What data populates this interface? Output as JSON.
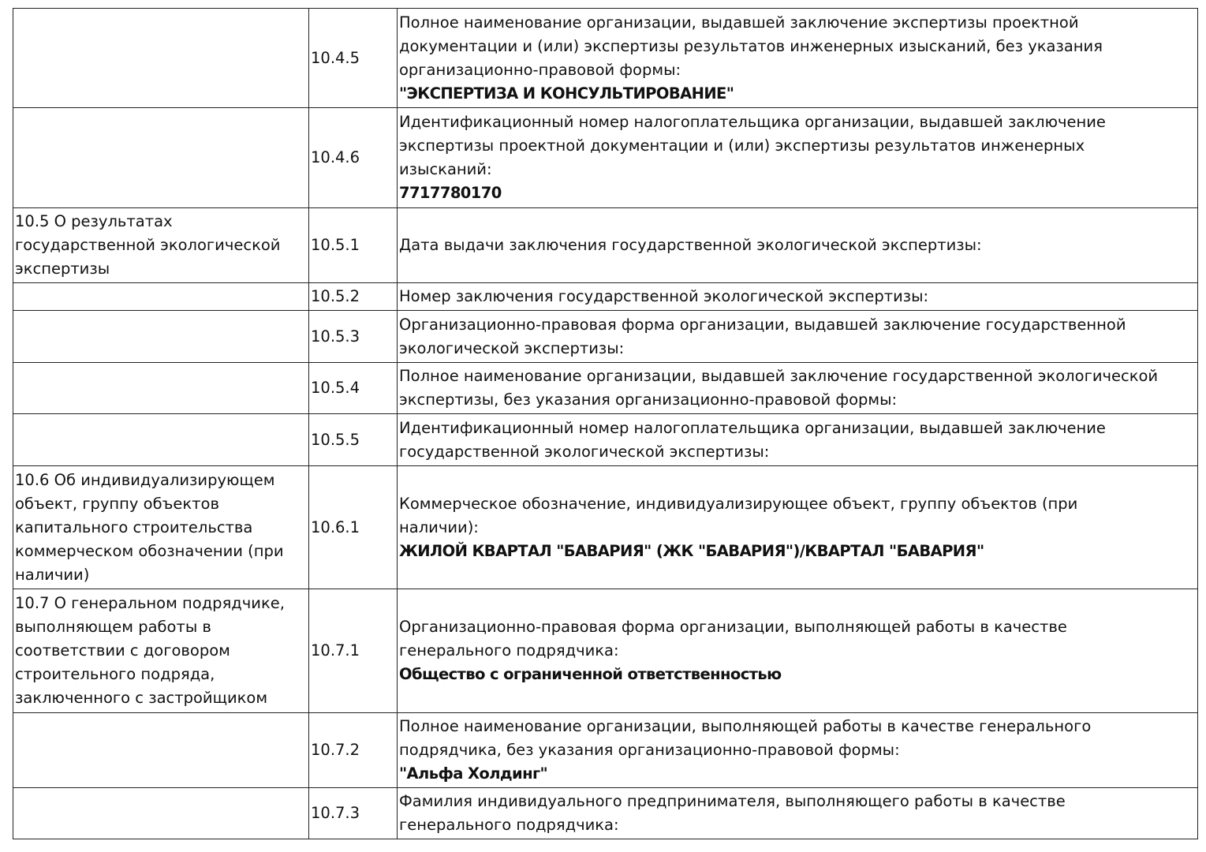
{
  "rows": [
    {
      "section": "",
      "code": "10.4.5",
      "label": "Полное наименование организации, выдавшей заключение экспертизы проектной\nдокументации и (или) экспертизы результатов инженерных изысканий, без указания\nорганизационно-правовой формы:",
      "value": "\"ЭКСПЕРТИЗА И КОНСУЛЬТИРОВАНИЕ\""
    },
    {
      "section": "",
      "code": "10.4.6",
      "label": "Идентификационный номер налогоплательщика организации, выдавшей заключение\nэкспертизы проектной документации и (или) экспертизы результатов инженерных\nизысканий:",
      "value": "7717780170"
    },
    {
      "section": "10.5 О результатах\nгосударственной экологической\nэкспертизы",
      "code": "10.5.1",
      "label": "Дата выдачи заключения государственной экологической экспертизы:",
      "value": ""
    },
    {
      "section": "",
      "code": "10.5.2",
      "label": "Номер заключения государственной экологической экспертизы:",
      "value": ""
    },
    {
      "section": "",
      "code": "10.5.3",
      "label": "Организационно-правовая форма организации, выдавшей заключение государственной\nэкологической экспертизы:",
      "value": ""
    },
    {
      "section": "",
      "code": "10.5.4",
      "label": "Полное наименование организации, выдавшей заключение государственной экологической\nэкспертизы, без указания организационно-правовой формы:",
      "value": ""
    },
    {
      "section": "",
      "code": "10.5.5",
      "label": "Идентификационный номер налогоплательщика организации, выдавшей заключение\nгосударственной экологической экспертизы:",
      "value": ""
    },
    {
      "section": "10.6 Об индивидуализирующем\nобъект, группу объектов\nкапитального строительства\nкоммерческом обозначении (при\nналичии)",
      "code": "10.6.1",
      "label": "Коммерческое обозначение, индивидуализирующее объект, группу объектов (при\nналичии):",
      "value": "ЖИЛОЙ КВАРТАЛ \"БАВАРИЯ\" (ЖК \"БАВАРИЯ\")/КВАРТАЛ \"БАВАРИЯ\""
    },
    {
      "section": "10.7 О генеральном подрядчике,\nвыполняющем работы в\nсоответствии с договором\nстроительного подряда,\nзаключенного с застройщиком",
      "code": "10.7.1",
      "label": "Организационно-правовая форма организации, выполняющей работы в качестве\nгенерального подрядчика:",
      "value": "Общество с ограниченной ответственностью"
    },
    {
      "section": "",
      "code": "10.7.2",
      "label": "Полное наименование организации, выполняющей работы в качестве генерального\nподрядчика, без указания организационно-правовой формы:",
      "value": "\"Альфа Холдинг\""
    },
    {
      "section": "",
      "code": "10.7.3",
      "label": "Фамилия индивидуального предпринимателя, выполняющего работы в качестве\nгенерального подрядчика:",
      "value": ""
    }
  ]
}
